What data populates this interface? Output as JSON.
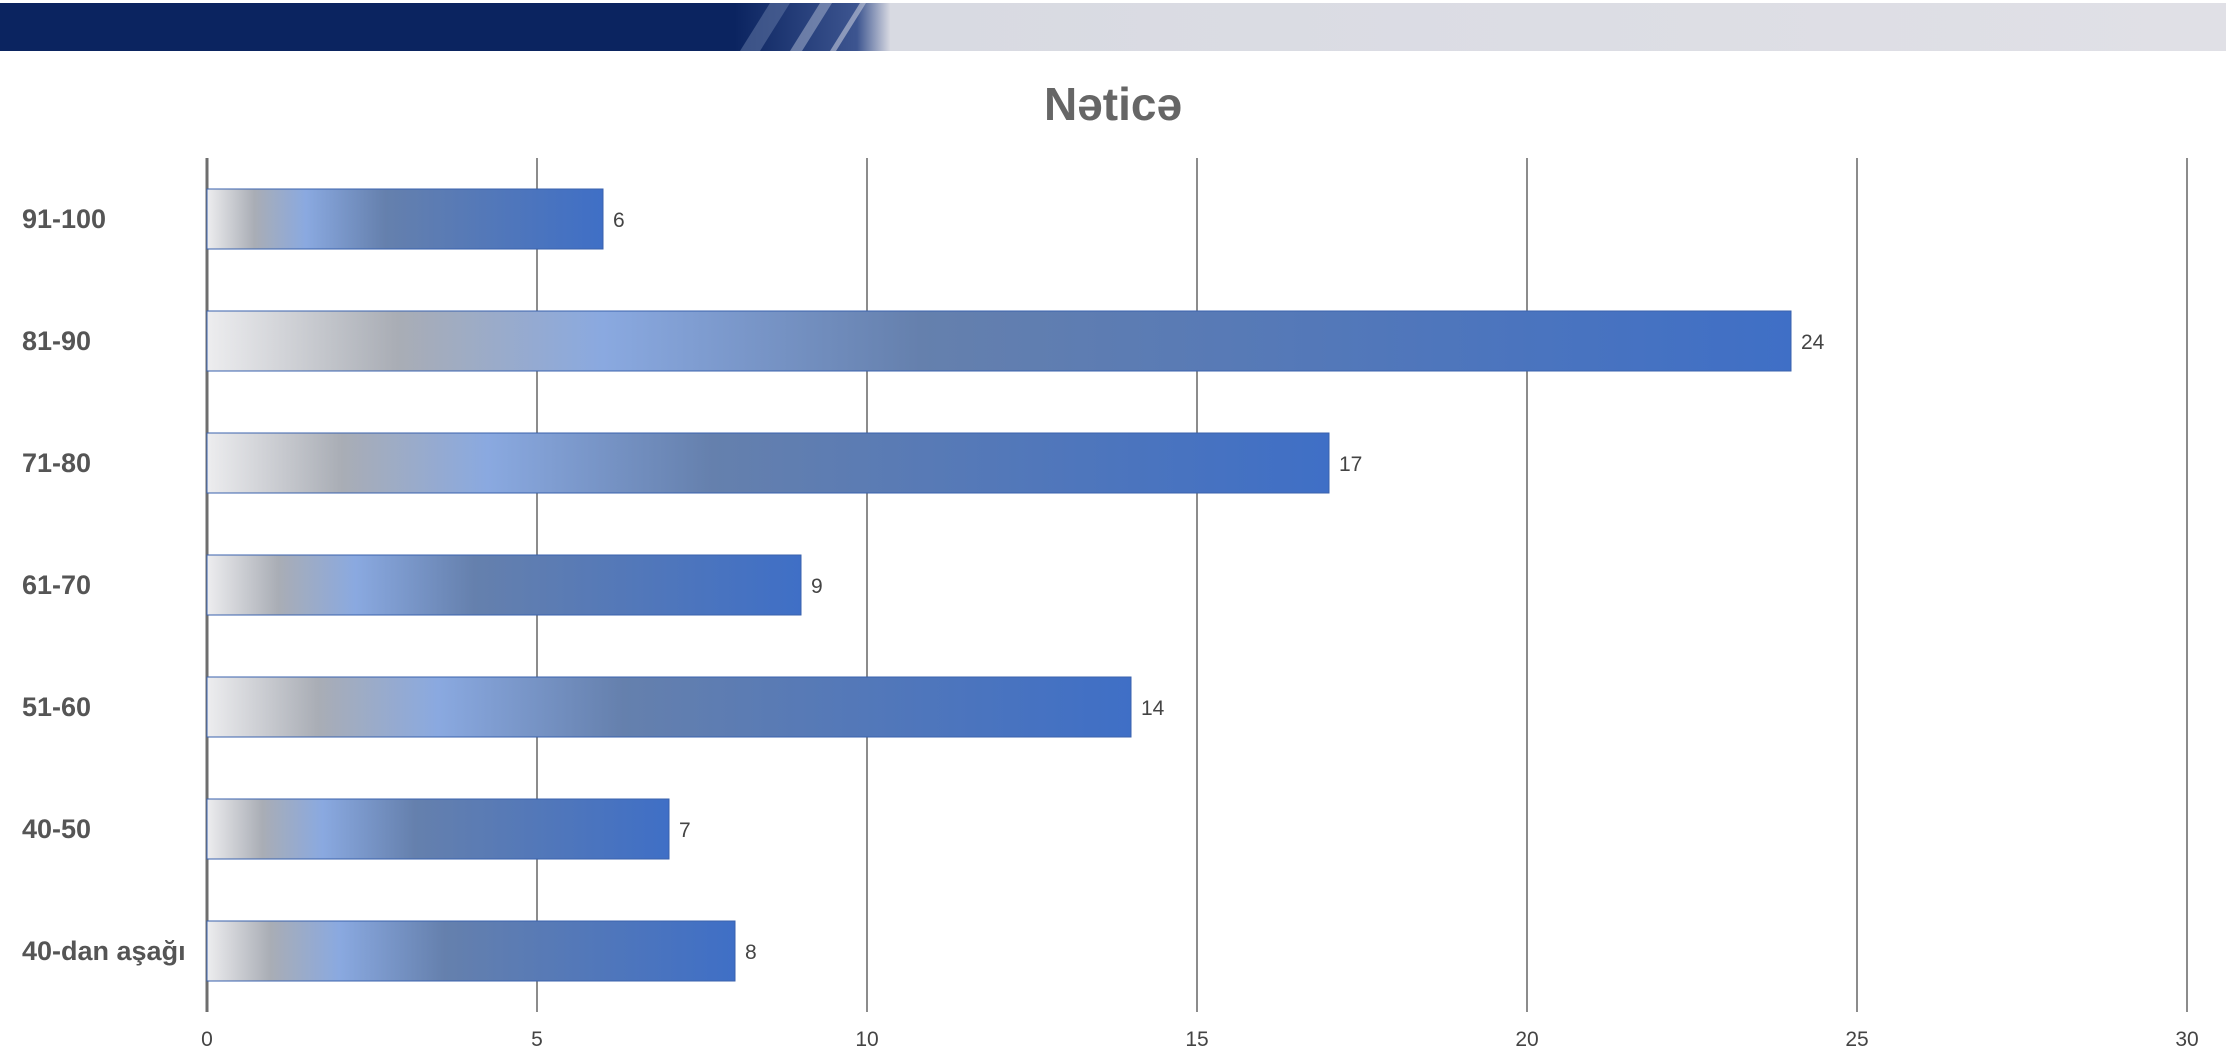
{
  "chart_data": {
    "type": "bar",
    "orientation": "horizontal",
    "title": "Nəticə",
    "categories": [
      "91-100",
      "81-90",
      "71-80",
      "61-70",
      "51-60",
      "40-50",
      "40-dan aşağı"
    ],
    "values": [
      6,
      24,
      17,
      9,
      14,
      7,
      8
    ],
    "xlim": [
      0,
      30
    ],
    "xticks": [
      "0",
      "5",
      "10",
      "15",
      "20",
      "25",
      "30"
    ],
    "xlabel": "",
    "ylabel": "",
    "grid": "vertical",
    "legend": "none",
    "data_labels": true
  },
  "colors": {
    "header_band_dark": "#0b2460",
    "header_band_light": "#e0e0e6",
    "bar_end": "#3f6fc6",
    "bar_mid": "#8aa9e0",
    "bar_start": "#e8e8ea",
    "grid": "#8c8c8c"
  }
}
